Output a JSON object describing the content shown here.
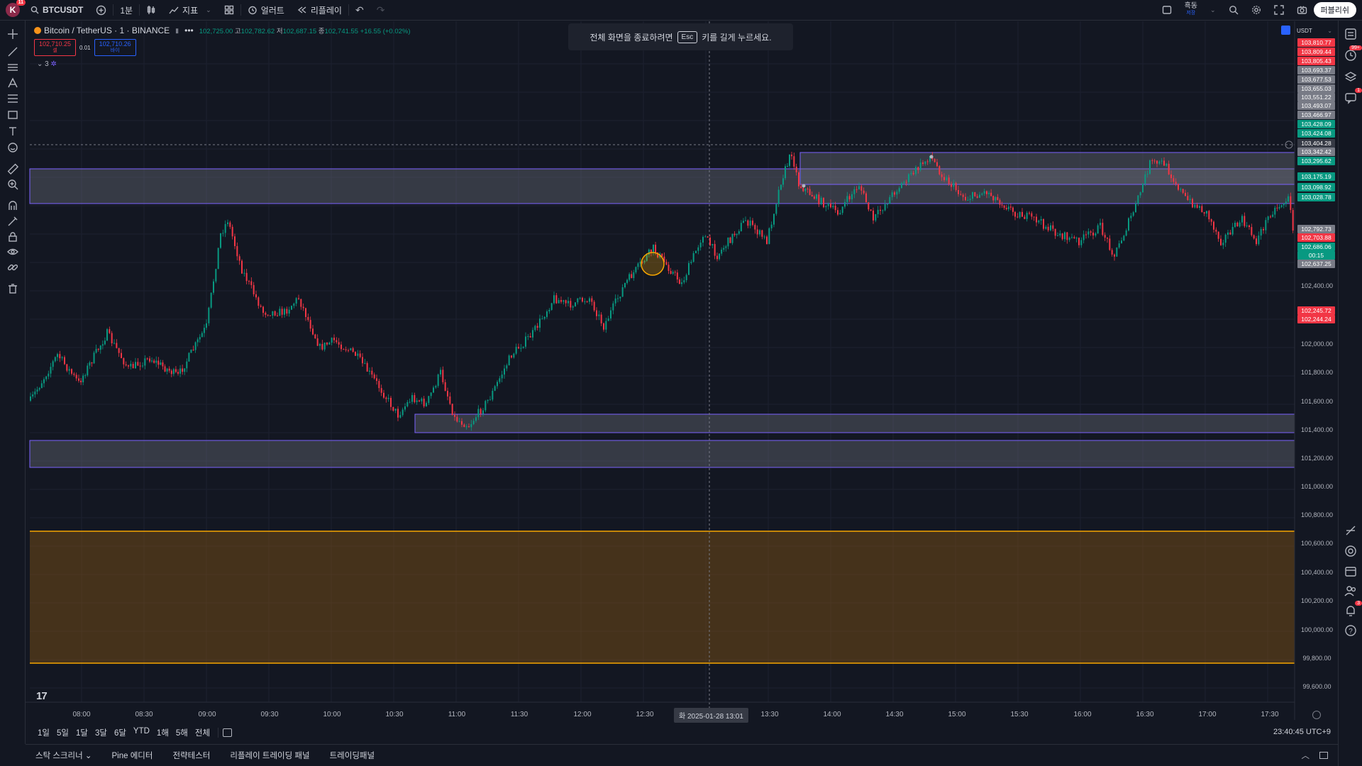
{
  "topbar": {
    "avatar_letter": "K",
    "avatar_badge": "11",
    "symbol": "BTCUSDT",
    "interval": "1분",
    "indicators_label": "지표",
    "alerts_label": "얼러트",
    "replay_label": "리플레이",
    "layout_name": "흑동",
    "layout_sub": "저장",
    "publish_label": "퍼블리쉬"
  },
  "legend": {
    "name": "Bitcoin / TetherUS · 1 · BINANCE",
    "open_k": "",
    "open": "102,725.00",
    "high_k": "고",
    "high": "102,782.62",
    "low_k": "저",
    "low": "102,687.15",
    "close_k": "종",
    "close": "102,741.55",
    "change": "+16.55 (+0.02%)",
    "sell_price": "102,710.25",
    "sell_label": "셀",
    "spread": "0.01",
    "buy_price": "102,710.26",
    "buy_label": "바이",
    "indicator_count": "3"
  },
  "toast": {
    "before": "전체 화면을 종료하려면",
    "key": "Esc",
    "after": "키를 길게 누르세요."
  },
  "currency": "USDT",
  "price_axis": [
    "102,400.00",
    "102,000.00",
    "101,800.00",
    "101,600.00",
    "101,400.00",
    "101,200.00",
    "101,000.00",
    "100,800.00",
    "100,600.00",
    "100,400.00",
    "100,200.00",
    "100,000.00",
    "99,800.00",
    "99,600.00"
  ],
  "price_labels": [
    {
      "text": "103,810.77",
      "color": "#f23645"
    },
    {
      "text": "103,809.44",
      "color": "#f23645"
    },
    {
      "text": "103,805.43",
      "color": "#f23645"
    },
    {
      "text": "103,693.37",
      "color": "#787b86"
    },
    {
      "text": "103,677.53",
      "color": "#787b86"
    },
    {
      "text": "103,655.03",
      "color": "#787b86"
    },
    {
      "text": "103,551.22",
      "color": "#787b86"
    },
    {
      "text": "103,493.07",
      "color": "#787b86"
    },
    {
      "text": "103,466.97",
      "color": "#787b86"
    },
    {
      "text": "103,428.09",
      "color": "#089981"
    },
    {
      "text": "103,424.08",
      "color": "#089981"
    },
    {
      "text": "103,404.28",
      "color": "#363a45"
    },
    {
      "text": "103,342.42",
      "color": "#787b86"
    },
    {
      "text": "103,295.62",
      "color": "#089981"
    },
    {
      "text": "103,175.19",
      "color": "#089981"
    },
    {
      "text": "103,098.92",
      "color": "#089981"
    },
    {
      "text": "103,028.78",
      "color": "#089981"
    },
    {
      "text": "102,792.73",
      "color": "#787b86"
    },
    {
      "text": "102,703.88",
      "color": "#f23645"
    },
    {
      "text": "102,686.06",
      "color": "#089981"
    },
    {
      "text": "00:15",
      "color": "#089981"
    },
    {
      "text": "102,637.25",
      "color": "#787b86"
    },
    {
      "text": "102,245.72",
      "color": "#f23645"
    },
    {
      "text": "102,244.24",
      "color": "#f23645"
    }
  ],
  "time_axis": [
    "08:00",
    "08:30",
    "09:00",
    "09:30",
    "10:00",
    "10:30",
    "11:00",
    "11:30",
    "12:00",
    "12:30",
    "13:30",
    "14:00",
    "14:30",
    "15:00",
    "15:30",
    "16:00",
    "16:30",
    "17:00",
    "17:30"
  ],
  "crosshair_time": "화 2025-01-28  13:01",
  "range_buttons": [
    "1일",
    "5일",
    "1달",
    "3달",
    "6달",
    "YTD",
    "1해",
    "5해",
    "전체"
  ],
  "clock": "23:40:45 UTC+9",
  "bottom_tabs": [
    "스탁 스크리너",
    "Pine 에디터",
    "전략테스터",
    "리플레이 트레이딩 패널",
    "트레이딩패널"
  ],
  "right_badges": {
    "watchlist": "99+",
    "chat": "1",
    "notifications": "3"
  },
  "colors": {
    "up": "#089981",
    "down": "#f23645",
    "zone": "#7b61ff",
    "orange": "#f7a600"
  }
}
